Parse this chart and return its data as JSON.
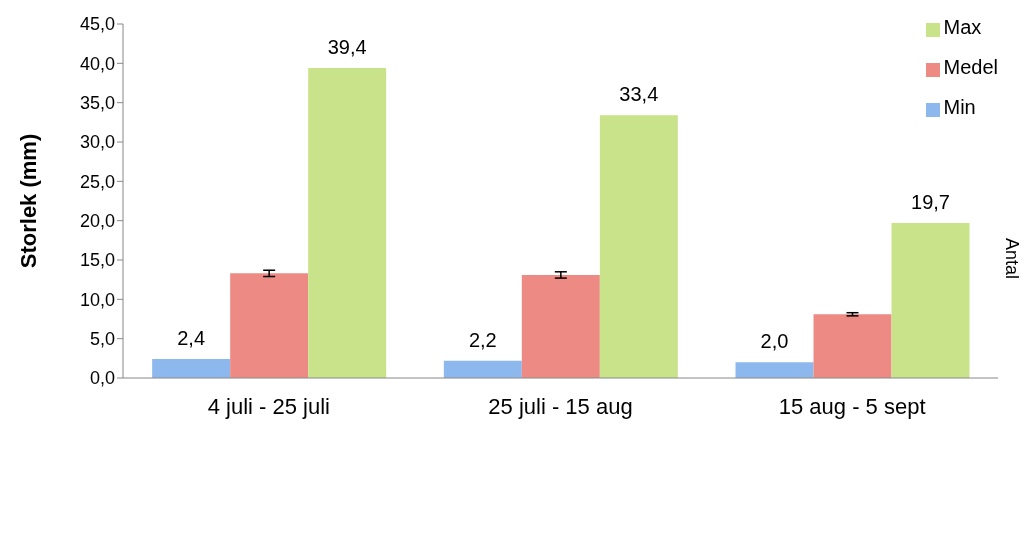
{
  "chart_data": {
    "type": "bar",
    "ylabel": "Storlek (mm)",
    "y2label": "Antal",
    "categories": [
      "4 juli - 25 juli",
      "25 juli - 15 aug",
      "15 aug - 5 sept"
    ],
    "series": [
      {
        "name": "Min",
        "color": "#8db8ee",
        "values": [
          2.4,
          2.2,
          2.0
        ],
        "value_labels": [
          "2,4",
          "2,2",
          "2,0"
        ]
      },
      {
        "name": "Medel",
        "color": "#ee8a84",
        "values": [
          13.3,
          13.1,
          8.1
        ],
        "errors": [
          0.4,
          0.4,
          0.2
        ]
      },
      {
        "name": "Max",
        "color": "#c9e38a",
        "values": [
          39.4,
          33.4,
          19.7
        ],
        "value_labels": [
          "39,4",
          "33,4",
          "19,7"
        ]
      }
    ],
    "ylim": [
      0,
      45
    ],
    "yticks": [
      {
        "value": 0,
        "label": "0,0"
      },
      {
        "value": 5,
        "label": "5,0"
      },
      {
        "value": 10,
        "label": "10,0"
      },
      {
        "value": 15,
        "label": "15,0"
      },
      {
        "value": 20,
        "label": "20,0"
      },
      {
        "value": 25,
        "label": "25,0"
      },
      {
        "value": 30,
        "label": "30,0"
      },
      {
        "value": 35,
        "label": "35,0"
      },
      {
        "value": 40,
        "label": "40,0"
      },
      {
        "value": 45,
        "label": "45,0"
      }
    ],
    "grid": false,
    "legend": "top right"
  }
}
